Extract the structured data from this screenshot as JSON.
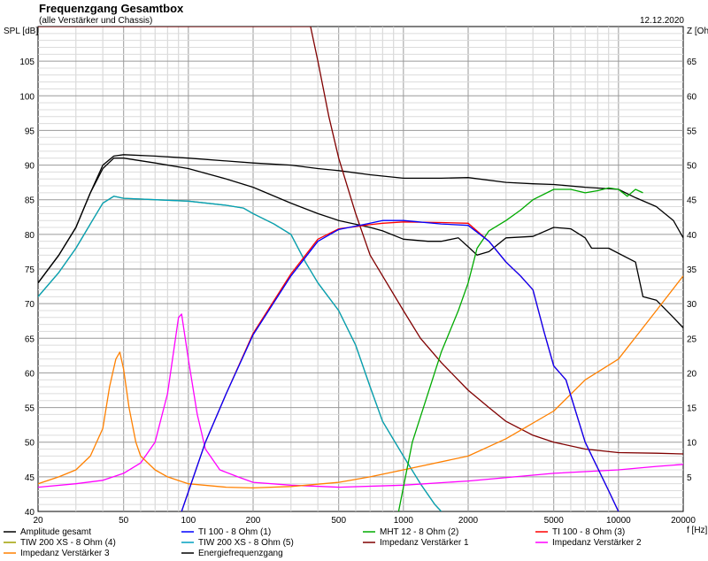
{
  "chart_data": {
    "type": "line",
    "title": "Frequenzgang Gesamtbox",
    "subtitle": "(alle Verstärker und Chassis)",
    "date": "12.12.2020",
    "ylabel_left": "SPL [dB]",
    "ylabel_right": "Z [Ohm]",
    "xlabel": "f [Hz]",
    "x_scale": "log",
    "xlim": [
      20,
      20000
    ],
    "ylim_left": [
      40,
      110
    ],
    "ylim_right": [
      0,
      70
    ],
    "grid": true,
    "x_ticks": [
      20,
      50,
      100,
      200,
      500,
      1000,
      2000,
      5000,
      10000,
      20000
    ],
    "x_tick_labels": [
      "20",
      "50",
      "100",
      "200",
      "500",
      "1000",
      "2000",
      "5000",
      "10000",
      "20000"
    ],
    "y_ticks_left": [
      40,
      45,
      50,
      55,
      60,
      65,
      70,
      75,
      80,
      85,
      90,
      95,
      100,
      105
    ],
    "y_ticks_right": [
      5,
      10,
      15,
      20,
      25,
      30,
      35,
      40,
      45,
      50,
      55,
      60,
      65
    ],
    "series": [
      {
        "name": "Amplitude gesamt",
        "color": "#000000",
        "axis": "left",
        "points": [
          [
            20,
            73
          ],
          [
            25,
            77
          ],
          [
            30,
            81
          ],
          [
            35,
            86
          ],
          [
            40,
            90
          ],
          [
            45,
            91.3
          ],
          [
            50,
            91.5
          ],
          [
            70,
            91.3
          ],
          [
            100,
            91
          ],
          [
            150,
            90.6
          ],
          [
            200,
            90.3
          ],
          [
            300,
            90
          ],
          [
            400,
            89.5
          ],
          [
            500,
            89.2
          ],
          [
            700,
            88.6
          ],
          [
            1000,
            88.1
          ],
          [
            1500,
            88.1
          ],
          [
            2000,
            88.2
          ],
          [
            3000,
            87.5
          ],
          [
            4000,
            87.3
          ],
          [
            5000,
            87.2
          ],
          [
            7000,
            86.8
          ],
          [
            10000,
            86.5
          ],
          [
            12000,
            85.3
          ],
          [
            15000,
            84
          ],
          [
            18000,
            82
          ],
          [
            20000,
            79.5
          ]
        ]
      },
      {
        "name": "TI 100 - 8 Ohm (1)",
        "color": "#0000ff",
        "axis": "left",
        "points": [
          [
            93,
            40
          ],
          [
            120,
            50
          ],
          [
            150,
            57
          ],
          [
            200,
            65.5
          ],
          [
            300,
            74
          ],
          [
            400,
            79
          ],
          [
            500,
            80.7
          ],
          [
            700,
            81.6
          ],
          [
            800,
            82
          ],
          [
            1000,
            82
          ],
          [
            1500,
            81.5
          ],
          [
            2000,
            81.3
          ],
          [
            2500,
            79
          ],
          [
            3000,
            76
          ],
          [
            3500,
            74
          ],
          [
            4000,
            72
          ],
          [
            4500,
            66
          ],
          [
            5000,
            61
          ],
          [
            5700,
            59
          ],
          [
            7000,
            50
          ],
          [
            9000,
            43
          ],
          [
            10000,
            40
          ]
        ]
      },
      {
        "name": "MHT 12 - 8 Ohm (2)",
        "color": "#00aa00",
        "axis": "left",
        "points": [
          [
            950,
            40
          ],
          [
            1100,
            50
          ],
          [
            1300,
            57
          ],
          [
            1500,
            63
          ],
          [
            1800,
            69
          ],
          [
            2000,
            73
          ],
          [
            2200,
            78
          ],
          [
            2500,
            80.5
          ],
          [
            3000,
            82
          ],
          [
            3500,
            83.5
          ],
          [
            4000,
            85
          ],
          [
            5000,
            86.5
          ],
          [
            6000,
            86.5
          ],
          [
            7000,
            86
          ],
          [
            8000,
            86.3
          ],
          [
            9000,
            86.7
          ],
          [
            10000,
            86.5
          ],
          [
            11000,
            85.5
          ],
          [
            12000,
            86.5
          ],
          [
            13000,
            86
          ]
        ]
      },
      {
        "name": "TI 100 - 8 Ohm (3)",
        "color": "#ff0000",
        "axis": "left",
        "points": [
          [
            93,
            40
          ],
          [
            120,
            50
          ],
          [
            150,
            57
          ],
          [
            200,
            65.7
          ],
          [
            300,
            74.3
          ],
          [
            400,
            79.3
          ],
          [
            500,
            80.8
          ],
          [
            700,
            81.4
          ],
          [
            800,
            81.6
          ],
          [
            1000,
            81.8
          ],
          [
            1500,
            81.7
          ],
          [
            2000,
            81.6
          ],
          [
            2500,
            79
          ],
          [
            3000,
            76
          ],
          [
            3500,
            74
          ],
          [
            4000,
            72
          ],
          [
            4500,
            66
          ],
          [
            5000,
            61
          ],
          [
            5700,
            59
          ],
          [
            7000,
            50
          ],
          [
            9000,
            43
          ],
          [
            10000,
            40
          ]
        ]
      },
      {
        "name": "TIW 200 XS - 8 Ohm (4)",
        "color": "#a0a000",
        "axis": "left",
        "points": [
          [
            20,
            71
          ],
          [
            25,
            74.5
          ],
          [
            30,
            78
          ],
          [
            35,
            81.5
          ],
          [
            40,
            84.5
          ],
          [
            45,
            85.5
          ],
          [
            50,
            85.2
          ],
          [
            70,
            85
          ],
          [
            100,
            84.8
          ],
          [
            150,
            84.2
          ],
          [
            180,
            83.8
          ],
          [
            200,
            83
          ],
          [
            250,
            81.5
          ],
          [
            300,
            80
          ],
          [
            350,
            76
          ],
          [
            400,
            73
          ],
          [
            500,
            69
          ],
          [
            600,
            64
          ],
          [
            700,
            58
          ],
          [
            800,
            53
          ],
          [
            1000,
            48
          ],
          [
            1200,
            44
          ],
          [
            1400,
            41
          ],
          [
            1500,
            40
          ]
        ]
      },
      {
        "name": "TIW 200 XS - 8 Ohm (5)",
        "color": "#00a0c0",
        "axis": "left",
        "points": [
          [
            20,
            71
          ],
          [
            25,
            74.5
          ],
          [
            30,
            78
          ],
          [
            35,
            81.5
          ],
          [
            40,
            84.5
          ],
          [
            45,
            85.5
          ],
          [
            50,
            85.2
          ],
          [
            70,
            85
          ],
          [
            100,
            84.8
          ],
          [
            150,
            84.2
          ],
          [
            180,
            83.8
          ],
          [
            200,
            83
          ],
          [
            250,
            81.5
          ],
          [
            300,
            80
          ],
          [
            350,
            76
          ],
          [
            400,
            73
          ],
          [
            500,
            69
          ],
          [
            600,
            64
          ],
          [
            700,
            58
          ],
          [
            800,
            53
          ],
          [
            1000,
            48
          ],
          [
            1200,
            44
          ],
          [
            1400,
            41
          ],
          [
            1500,
            40
          ]
        ]
      },
      {
        "name": "Impedanz Verstärker 1",
        "color": "#800000",
        "axis": "right",
        "points": [
          [
            20,
            70
          ],
          [
            370,
            70
          ],
          [
            400,
            65
          ],
          [
            450,
            57
          ],
          [
            500,
            51
          ],
          [
            600,
            43
          ],
          [
            700,
            37
          ],
          [
            800,
            34
          ],
          [
            1000,
            29
          ],
          [
            1200,
            25
          ],
          [
            1500,
            21.5
          ],
          [
            2000,
            17.5
          ],
          [
            2500,
            15
          ],
          [
            3000,
            13
          ],
          [
            4000,
            11
          ],
          [
            5000,
            10
          ],
          [
            7000,
            9
          ],
          [
            10000,
            8.5
          ],
          [
            15000,
            8.4
          ],
          [
            20000,
            8.3
          ]
        ]
      },
      {
        "name": "Impedanz Verstärker 2",
        "color": "#ff00ff",
        "axis": "right",
        "points": [
          [
            20,
            3.5
          ],
          [
            30,
            4
          ],
          [
            40,
            4.5
          ],
          [
            50,
            5.5
          ],
          [
            60,
            7
          ],
          [
            70,
            10
          ],
          [
            80,
            17
          ],
          [
            90,
            28
          ],
          [
            93,
            28.5
          ],
          [
            100,
            22
          ],
          [
            110,
            14
          ],
          [
            120,
            9
          ],
          [
            140,
            6
          ],
          [
            170,
            5
          ],
          [
            200,
            4.2
          ],
          [
            300,
            3.8
          ],
          [
            500,
            3.5
          ],
          [
            1000,
            3.8
          ],
          [
            2000,
            4.4
          ],
          [
            5000,
            5.5
          ],
          [
            10000,
            6
          ],
          [
            15000,
            6.5
          ],
          [
            20000,
            6.8
          ]
        ]
      },
      {
        "name": "Impedanz Verstärker 3",
        "color": "#ff8000",
        "axis": "right",
        "points": [
          [
            20,
            4
          ],
          [
            25,
            5
          ],
          [
            30,
            6
          ],
          [
            35,
            8
          ],
          [
            40,
            12
          ],
          [
            43,
            18
          ],
          [
            46,
            22
          ],
          [
            48,
            23
          ],
          [
            50,
            20.5
          ],
          [
            53,
            15
          ],
          [
            57,
            10
          ],
          [
            60,
            8
          ],
          [
            70,
            6
          ],
          [
            80,
            5
          ],
          [
            100,
            4
          ],
          [
            150,
            3.5
          ],
          [
            200,
            3.4
          ],
          [
            300,
            3.6
          ],
          [
            500,
            4.2
          ],
          [
            700,
            5
          ],
          [
            1000,
            6
          ],
          [
            2000,
            8
          ],
          [
            3000,
            10.5
          ],
          [
            5000,
            14.5
          ],
          [
            7000,
            19
          ],
          [
            10000,
            22
          ],
          [
            15000,
            29
          ],
          [
            20000,
            34
          ]
        ]
      },
      {
        "name": "Energiefrequenzgang",
        "color": "#000000",
        "axis": "left",
        "points": [
          [
            20,
            73
          ],
          [
            25,
            77
          ],
          [
            30,
            81
          ],
          [
            35,
            86
          ],
          [
            40,
            89.5
          ],
          [
            45,
            91
          ],
          [
            50,
            91
          ],
          [
            70,
            90.3
          ],
          [
            100,
            89.5
          ],
          [
            150,
            88
          ],
          [
            200,
            86.8
          ],
          [
            300,
            84.5
          ],
          [
            400,
            83
          ],
          [
            500,
            82
          ],
          [
            700,
            81
          ],
          [
            800,
            80.5
          ],
          [
            1000,
            79.3
          ],
          [
            1300,
            79
          ],
          [
            1500,
            79
          ],
          [
            1800,
            79.5
          ],
          [
            2000,
            78.2
          ],
          [
            2200,
            77
          ],
          [
            2500,
            77.5
          ],
          [
            3000,
            79.5
          ],
          [
            4000,
            79.7
          ],
          [
            5000,
            81
          ],
          [
            6000,
            80.8
          ],
          [
            7000,
            79.5
          ],
          [
            7500,
            78
          ],
          [
            9000,
            78
          ],
          [
            12000,
            76
          ],
          [
            13000,
            71
          ],
          [
            15000,
            70.5
          ],
          [
            18000,
            68
          ],
          [
            20000,
            66.5
          ]
        ]
      }
    ]
  }
}
